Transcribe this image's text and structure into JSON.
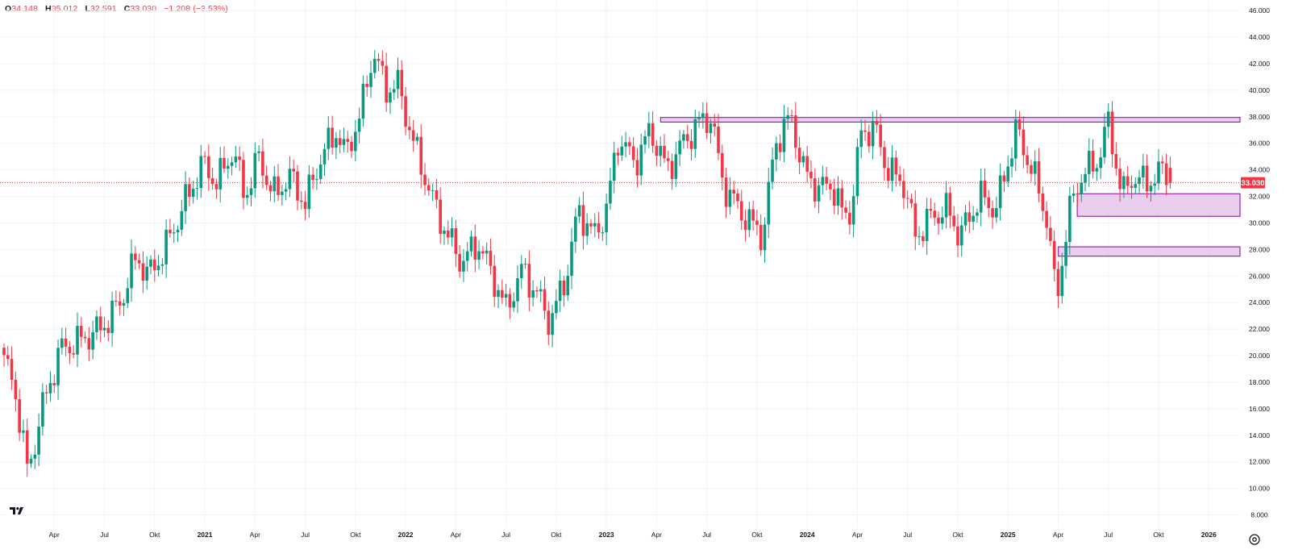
{
  "header": {
    "o_label": "O",
    "o_value": "34.148",
    "h_label": "H",
    "h_value": "35.012",
    "l_label": "L",
    "l_value": "32.591",
    "c_label": "C",
    "c_value": "33.030",
    "change": "−1.208 (−3.53%)"
  },
  "last_price_label": "33.030",
  "colors": {
    "up": "#089981",
    "down": "#f23645",
    "zone_fill": "#e1bee7",
    "zone_border": "#9c27b0",
    "grid": "#f0f3fa",
    "text": "#131722"
  },
  "icons": [
    "tradingview-logo-icon",
    "settings-gear-icon"
  ],
  "chart_data": {
    "type": "candlestick",
    "y_axis": {
      "min": 7,
      "max": 46.8,
      "ticks": [
        "46.000",
        "44.000",
        "42.000",
        "40.000",
        "38.000",
        "36.000",
        "34.000",
        "32.000",
        "30.000",
        "28.000",
        "26.000",
        "24.000",
        "22.000",
        "20.000",
        "18.000",
        "16.000",
        "14.000",
        "12.000",
        "10.000",
        "8.000"
      ]
    },
    "x_ticks": [
      {
        "label": "Apr",
        "year": false,
        "t": 2020.25
      },
      {
        "label": "Jul",
        "year": false,
        "t": 2020.5
      },
      {
        "label": "Okt",
        "year": false,
        "t": 2020.75
      },
      {
        "label": "2021",
        "year": true,
        "t": 2021.0
      },
      {
        "label": "Apr",
        "year": false,
        "t": 2021.25
      },
      {
        "label": "Jul",
        "year": false,
        "t": 2021.5
      },
      {
        "label": "Okt",
        "year": false,
        "t": 2021.75
      },
      {
        "label": "2022",
        "year": true,
        "t": 2022.0
      },
      {
        "label": "Apr",
        "year": false,
        "t": 2022.25
      },
      {
        "label": "Jul",
        "year": false,
        "t": 2022.5
      },
      {
        "label": "Okt",
        "year": false,
        "t": 2022.75
      },
      {
        "label": "2023",
        "year": true,
        "t": 2023.0
      },
      {
        "label": "Apr",
        "year": false,
        "t": 2023.25
      },
      {
        "label": "Jul",
        "year": false,
        "t": 2023.5
      },
      {
        "label": "Okt",
        "year": false,
        "t": 2023.75
      },
      {
        "label": "2024",
        "year": true,
        "t": 2024.0
      },
      {
        "label": "Apr",
        "year": false,
        "t": 2024.25
      },
      {
        "label": "Jul",
        "year": false,
        "t": 2024.5
      },
      {
        "label": "Okt",
        "year": false,
        "t": 2024.75
      },
      {
        "label": "2025",
        "year": true,
        "t": 2025.0
      },
      {
        "label": "Apr",
        "year": false,
        "t": 2025.25
      },
      {
        "label": "Jul",
        "year": false,
        "t": 2025.5
      },
      {
        "label": "Okt",
        "year": false,
        "t": 2025.75
      },
      {
        "label": "2026",
        "year": true,
        "t": 2026.0
      }
    ],
    "anchors": [
      [
        2020.0,
        19.8
      ],
      [
        2020.06,
        17.0
      ],
      [
        2020.12,
        11.0
      ],
      [
        2020.18,
        15.5
      ],
      [
        2020.28,
        20.5
      ],
      [
        2020.36,
        21.0
      ],
      [
        2020.48,
        22.0
      ],
      [
        2020.58,
        24.0
      ],
      [
        2020.66,
        27.5
      ],
      [
        2020.72,
        26.0
      ],
      [
        2020.8,
        28.0
      ],
      [
        2020.9,
        31.5
      ],
      [
        2020.99,
        34.5
      ],
      [
        2021.06,
        33.0
      ],
      [
        2021.14,
        35.5
      ],
      [
        2021.2,
        32.0
      ],
      [
        2021.27,
        35.0
      ],
      [
        2021.34,
        32.0
      ],
      [
        2021.42,
        33.5
      ],
      [
        2021.5,
        31.5
      ],
      [
        2021.58,
        35.0
      ],
      [
        2021.66,
        37.0
      ],
      [
        2021.7,
        35.0
      ],
      [
        2021.78,
        38.5
      ],
      [
        2021.84,
        43.0
      ],
      [
        2021.9,
        40.0
      ],
      [
        2021.96,
        40.5
      ],
      [
        2022.04,
        36.0
      ],
      [
        2022.14,
        31.5
      ],
      [
        2022.21,
        29.0
      ],
      [
        2022.28,
        27.0
      ],
      [
        2022.36,
        28.5
      ],
      [
        2022.42,
        26.5
      ],
      [
        2022.5,
        23.5
      ],
      [
        2022.58,
        26.5
      ],
      [
        2022.66,
        24.5
      ],
      [
        2022.72,
        22.5
      ],
      [
        2022.8,
        26.0
      ],
      [
        2022.86,
        31.0
      ],
      [
        2022.94,
        29.0
      ],
      [
        2023.0,
        31.0
      ],
      [
        2023.06,
        36.5
      ],
      [
        2023.14,
        34.5
      ],
      [
        2023.22,
        37.0
      ],
      [
        2023.3,
        34.0
      ],
      [
        2023.38,
        36.0
      ],
      [
        2023.46,
        37.5
      ],
      [
        2023.52,
        38.0
      ],
      [
        2023.58,
        33.0
      ],
      [
        2023.66,
        31.0
      ],
      [
        2023.72,
        30.0
      ],
      [
        2023.78,
        29.0
      ],
      [
        2023.84,
        36.0
      ],
      [
        2023.92,
        38.0
      ],
      [
        2023.98,
        34.0
      ],
      [
        2024.06,
        32.5
      ],
      [
        2024.12,
        33.0
      ],
      [
        2024.18,
        30.5
      ],
      [
        2024.22,
        31.0
      ],
      [
        2024.27,
        37.0
      ],
      [
        2024.34,
        37.0
      ],
      [
        2024.4,
        34.0
      ],
      [
        2024.48,
        33.0
      ],
      [
        2024.54,
        29.0
      ],
      [
        2024.62,
        30.5
      ],
      [
        2024.7,
        31.0
      ],
      [
        2024.76,
        29.0
      ],
      [
        2024.86,
        32.0
      ],
      [
        2024.94,
        31.0
      ],
      [
        2025.04,
        37.0
      ],
      [
        2025.12,
        34.0
      ],
      [
        2025.2,
        30.0
      ],
      [
        2025.24,
        24.0
      ],
      [
        2025.3,
        30.5
      ],
      [
        2025.36,
        33.5
      ],
      [
        2025.44,
        34.5
      ],
      [
        2025.5,
        37.5
      ],
      [
        2025.57,
        32.0
      ],
      [
        2025.62,
        33.5
      ],
      [
        2025.68,
        33.0
      ],
      [
        2025.74,
        33.5
      ],
      [
        2025.78,
        34.1
      ],
      [
        2025.81,
        33.03
      ]
    ],
    "zones": [
      {
        "y1": 37.6,
        "y2": 37.95,
        "x_start": 2023.27
      },
      {
        "y1": 30.5,
        "y2": 32.2,
        "x_start": 2025.345
      },
      {
        "y1": 27.5,
        "y2": 28.2,
        "x_start": 2025.25
      }
    ],
    "last_close": 33.03,
    "grid": true,
    "y_axis_position": "right"
  }
}
